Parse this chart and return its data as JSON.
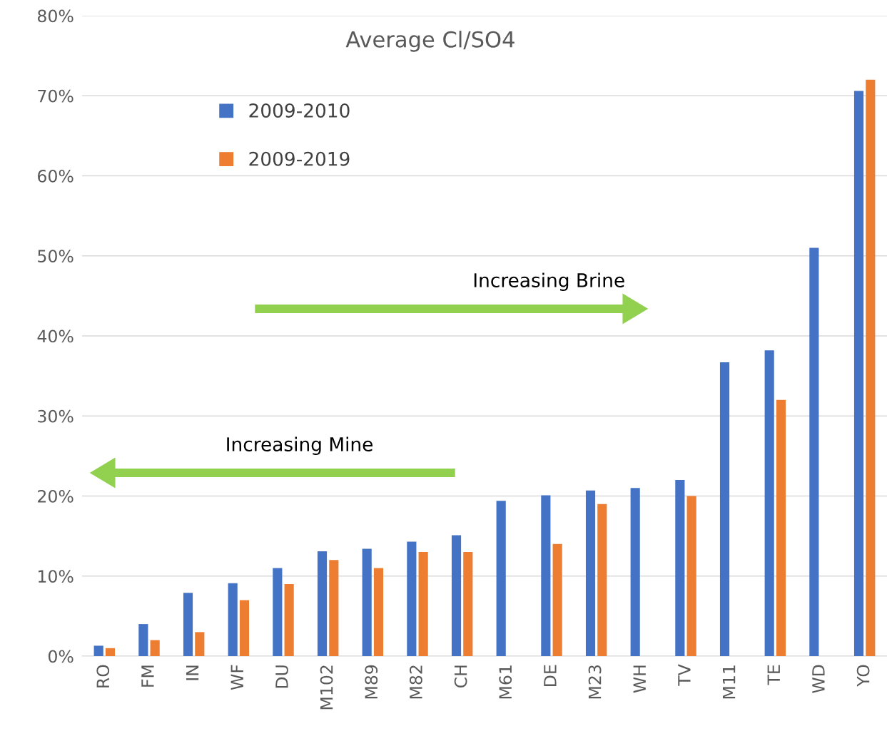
{
  "chart_data": {
    "type": "bar",
    "title": "Average Cl/SO4",
    "categories": [
      "RO",
      "FM",
      "IN",
      "WF",
      "DU",
      "M102",
      "M89",
      "M82",
      "CH",
      "M61",
      "DE",
      "M23",
      "WH",
      "TV",
      "M11",
      "TE",
      "WD",
      "YO"
    ],
    "series": [
      {
        "name": "2009-2010",
        "color": "#4472c4",
        "values": [
          1.3,
          4.0,
          7.9,
          9.1,
          11.0,
          13.1,
          13.4,
          14.3,
          15.1,
          19.4,
          20.1,
          20.7,
          21.0,
          22.0,
          36.7,
          38.2,
          51.0,
          70.6
        ]
      },
      {
        "name": "2009-2019",
        "color": "#ed7d31",
        "values": [
          1.0,
          2.0,
          3.0,
          7.0,
          9.0,
          12.0,
          11.0,
          13.0,
          13.0,
          null,
          14.0,
          19.0,
          null,
          20.0,
          null,
          32.0,
          null,
          72.0
        ]
      }
    ],
    "ylim": [
      0,
      80
    ],
    "yticks": [
      {
        "value": 0,
        "label": "0%"
      },
      {
        "value": 10,
        "label": "10%"
      },
      {
        "value": 20,
        "label": "20%"
      },
      {
        "value": 30,
        "label": "30%"
      },
      {
        "value": 40,
        "label": "40%"
      },
      {
        "value": 50,
        "label": "50%"
      },
      {
        "value": 60,
        "label": "60%"
      },
      {
        "value": 70,
        "label": "70%"
      },
      {
        "value": 80,
        "label": "80%"
      }
    ],
    "grid": "y",
    "legend": "top left",
    "annotations": [
      "Increasing Brine",
      "Increasing Mine"
    ]
  }
}
